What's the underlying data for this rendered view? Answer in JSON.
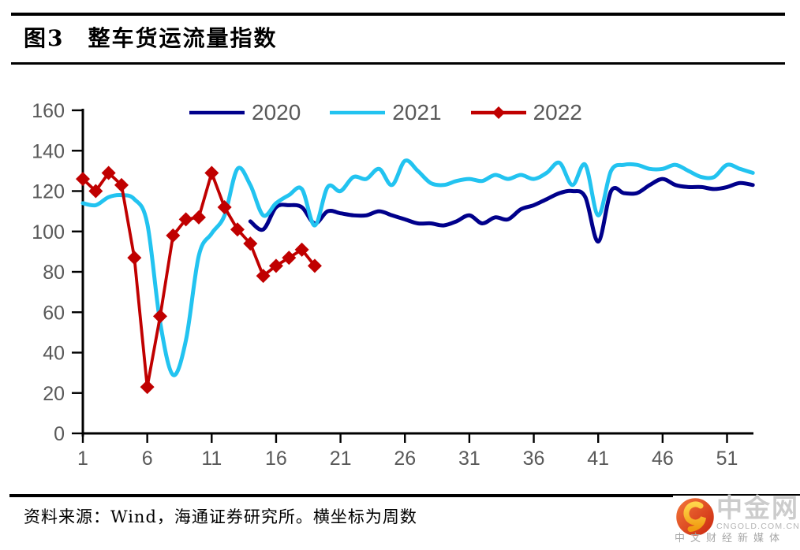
{
  "header": {
    "title": "图3　整车货运流量指数"
  },
  "legend": [
    {
      "label": "2020",
      "color": "#00008B",
      "marker": "line"
    },
    {
      "label": "2021",
      "color": "#22C3F0",
      "marker": "line"
    },
    {
      "label": "2022",
      "color": "#C00000",
      "marker": "line-diamond"
    }
  ],
  "chart_data": {
    "type": "line",
    "title": "整车货运流量指数",
    "xlabel": "周数",
    "ylabel": "",
    "xlim": [
      1,
      53
    ],
    "ylim": [
      0,
      160
    ],
    "x_ticks": [
      1,
      6,
      11,
      16,
      21,
      26,
      31,
      36,
      41,
      46,
      51
    ],
    "y_ticks": [
      0,
      20,
      40,
      60,
      80,
      100,
      120,
      140,
      160
    ],
    "grid": false,
    "legend_position": "top",
    "series": [
      {
        "name": "2020",
        "color": "#00008B",
        "marker": "none",
        "smooth": true,
        "start_week": 14,
        "values": [
          105,
          101,
          112,
          113,
          112,
          104,
          110,
          109,
          108,
          108,
          110,
          108,
          106,
          104,
          104,
          103,
          105,
          108,
          104,
          107,
          106,
          111,
          113,
          116,
          119,
          120,
          117,
          95,
          120,
          119,
          119,
          123,
          126,
          123,
          122,
          122,
          121,
          122,
          124,
          123
        ]
      },
      {
        "name": "2021",
        "color": "#22C3F0",
        "marker": "none",
        "smooth": true,
        "start_week": 1,
        "values": [
          114,
          113,
          117,
          118,
          116,
          104,
          55,
          29,
          46,
          88,
          99,
          108,
          131,
          123,
          108,
          114,
          118,
          121,
          103,
          122,
          120,
          127,
          126,
          131,
          123,
          135,
          130,
          124,
          123,
          125,
          126,
          125,
          128,
          126,
          128,
          126,
          129,
          134,
          123,
          133,
          108,
          130,
          133,
          133,
          131,
          131,
          133,
          130,
          127,
          127,
          133,
          131,
          129
        ]
      },
      {
        "name": "2022",
        "color": "#C00000",
        "marker": "diamond",
        "smooth": false,
        "start_week": 1,
        "values": [
          126,
          120,
          129,
          123,
          87,
          23,
          58,
          98,
          106,
          107,
          129,
          112,
          101,
          94,
          78,
          83,
          87,
          91,
          83
        ]
      }
    ],
    "axis_color": "#000000",
    "tick_label_color": "#595959"
  },
  "footer": {
    "source": "资料来源：Wind，海通证券研究所。横坐标为周数"
  },
  "logo": {
    "brand": "中金网",
    "domain": "CNGOLD.COM.CN",
    "tagline": "中文财经新媒体"
  }
}
